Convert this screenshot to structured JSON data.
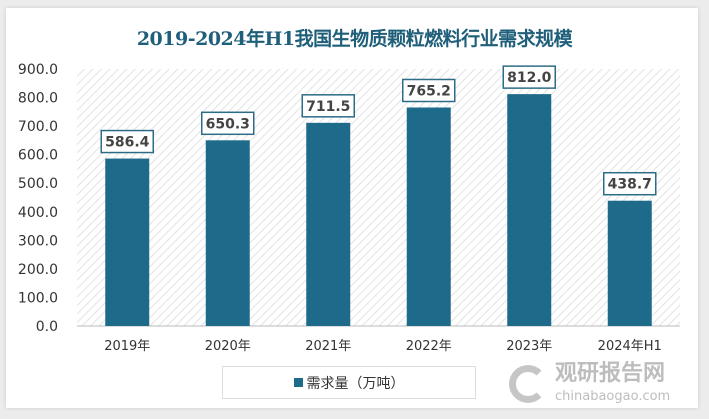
{
  "chart_data": {
    "type": "bar",
    "title": "2019-2024年H1我国生物质颗粒燃料行业需求规模",
    "categories": [
      "2019年",
      "2020年",
      "2021年",
      "2022年",
      "2023年",
      "2024年H1"
    ],
    "series": [
      {
        "name": "需求量（万吨）",
        "values": [
          586.4,
          650.3,
          711.5,
          765.2,
          812.0,
          438.7
        ]
      }
    ],
    "data_labels": [
      "586.4",
      "650.3",
      "711.5",
      "765.2",
      "812.0",
      "438.7"
    ],
    "yticks": [
      "0.0",
      "100.0",
      "200.0",
      "300.0",
      "400.0",
      "500.0",
      "600.0",
      "700.0",
      "800.0",
      "900.0"
    ],
    "ylim": [
      0,
      900
    ],
    "legend_position": "bottom",
    "bar_color": "#1d6a8a",
    "background": "diagonal hatch"
  },
  "watermark": {
    "cn": "观研报告网",
    "en": "chinabaogao.com"
  }
}
